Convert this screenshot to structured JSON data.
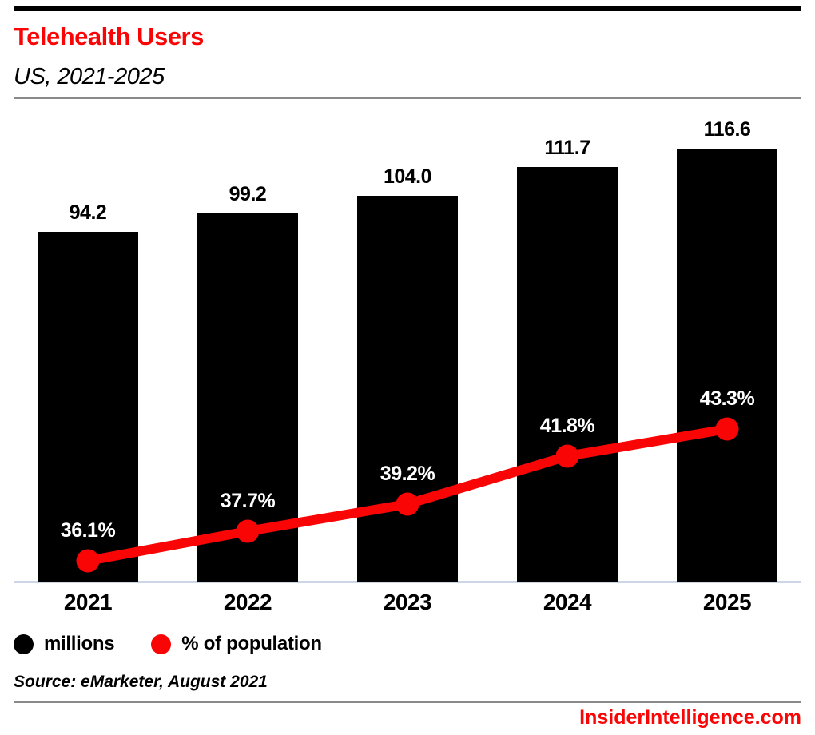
{
  "header": {
    "title": "Telehealth Users",
    "subtitle": "US, 2021-2025"
  },
  "chart_data": {
    "type": "bar",
    "title": "Telehealth Users",
    "subtitle": "US, 2021-2025",
    "categories": [
      "2021",
      "2022",
      "2023",
      "2024",
      "2025"
    ],
    "series": [
      {
        "name": "millions",
        "chart_type": "bar",
        "color": "#000000",
        "values": [
          94.2,
          99.2,
          104.0,
          111.7,
          116.6
        ],
        "labels": [
          "94.2",
          "99.2",
          "104.0",
          "111.7",
          "116.6"
        ]
      },
      {
        "name": "% of population",
        "chart_type": "line",
        "color": "#fa0505",
        "values": [
          36.1,
          37.7,
          39.2,
          41.8,
          43.3
        ],
        "labels": [
          "36.1%",
          "37.7%",
          "39.2%",
          "41.8%",
          "43.3%"
        ]
      }
    ],
    "xlabel": "",
    "ylabel": "",
    "bar_axis_range": [
      0,
      127
    ],
    "grid": false,
    "legend_position": "bottom-left"
  },
  "legend": {
    "items": [
      {
        "label": "millions",
        "color": "#000000"
      },
      {
        "label": "% of population",
        "color": "#fa0505"
      }
    ]
  },
  "source": "Source: eMarketer, August 2021",
  "footer": {
    "site": "InsiderIntelligence.com"
  },
  "colors": {
    "accent_red": "#fa0505",
    "bar_black": "#000000",
    "rule_gray": "#8a8a8a",
    "baseline_blue_gray": "#ccd6e4",
    "pct_label_white": "#ffffff",
    "background": "#ffffff"
  }
}
